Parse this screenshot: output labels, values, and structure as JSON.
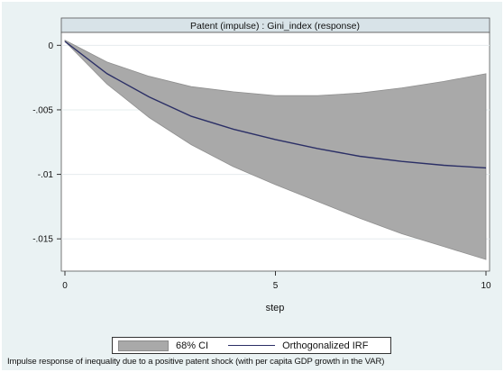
{
  "chart_data": {
    "type": "area",
    "title": "Patent (impulse) : Gini_index (response)",
    "xlabel": "step",
    "ylabel": "",
    "xlim": [
      0,
      10
    ],
    "ylim": [
      -0.0175,
      0.001
    ],
    "x_ticks": [
      0,
      5,
      10
    ],
    "x_tick_labels": [
      "0",
      "5",
      "10"
    ],
    "y_ticks": [
      0,
      -0.005,
      -0.01,
      -0.015
    ],
    "y_tick_labels": [
      "0",
      "-.005",
      "-.01",
      "-.015"
    ],
    "grid": true,
    "legend_position": "bottom",
    "x": [
      0,
      1,
      2,
      3,
      4,
      5,
      6,
      7,
      8,
      9,
      10
    ],
    "series": [
      {
        "name": "Orthogonalized IRF",
        "kind": "line",
        "color": "#2b2f66",
        "values": [
          0.0003,
          -0.0022,
          -0.004,
          -0.0055,
          -0.0065,
          -0.0073,
          -0.008,
          -0.0086,
          -0.009,
          -0.0093,
          -0.0095
        ]
      },
      {
        "name": "68% CI",
        "kind": "band",
        "color": "#a9a9a9",
        "lower": [
          0.0003,
          -0.003,
          -0.0056,
          -0.0077,
          -0.0094,
          -0.0108,
          -0.0121,
          -0.0134,
          -0.0146,
          -0.0156,
          -0.0166
        ],
        "upper": [
          0.0004,
          -0.0013,
          -0.0024,
          -0.0032,
          -0.0036,
          -0.0039,
          -0.0039,
          -0.0037,
          -0.0033,
          -0.0028,
          -0.0022
        ]
      }
    ]
  },
  "legend": {
    "ci_label": "68% CI",
    "irf_label": "Orthogonalized IRF"
  },
  "caption": "Impulse response of inequality due to a positive patent shock (with per capita GDP growth in the VAR)"
}
